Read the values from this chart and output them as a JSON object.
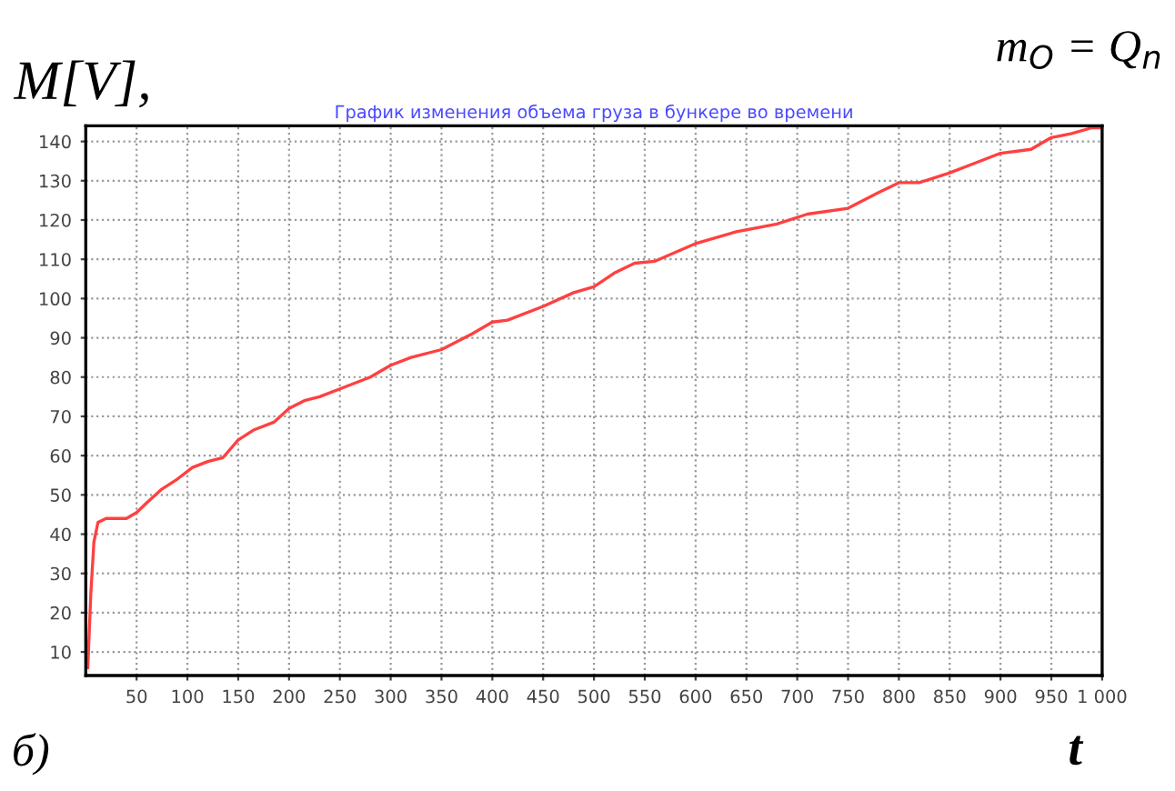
{
  "chart_data": {
    "type": "line",
    "title": "График изменения объема груза в бункере во времени",
    "xlabel": "t",
    "ylabel": "M[V],",
    "annotations": [
      "m$_{O}$ = Q$_{n}$",
      "б)"
    ],
    "x": [
      2,
      5,
      8,
      12,
      20,
      40,
      50,
      60,
      75,
      90,
      105,
      120,
      135,
      150,
      165,
      185,
      200,
      215,
      230,
      250,
      280,
      300,
      320,
      350,
      380,
      400,
      415,
      450,
      480,
      500,
      520,
      540,
      560,
      600,
      640,
      680,
      710,
      750,
      780,
      800,
      820,
      850,
      870,
      900,
      930,
      950,
      970,
      990,
      1000
    ],
    "series": [
      {
        "color": "#ff4040",
        "values": [
          6,
          25,
          38,
          43,
          44,
          44,
          45.5,
          48,
          51.5,
          54,
          57,
          58.5,
          59.5,
          64,
          66.5,
          68.5,
          72,
          74,
          75,
          77,
          80,
          83,
          85,
          87,
          91,
          94,
          94.5,
          98,
          101.5,
          103,
          106.5,
          109,
          109.5,
          114,
          117,
          119,
          121.5,
          123,
          127,
          129.5,
          129.5,
          132,
          134,
          137,
          138,
          141,
          142,
          143.5,
          143.5
        ]
      }
    ],
    "xlim": [
      0,
      1000
    ],
    "ylim": [
      4,
      144
    ],
    "xticks": [
      50,
      100,
      150,
      200,
      250,
      300,
      350,
      400,
      450,
      500,
      550,
      600,
      650,
      700,
      750,
      800,
      850,
      900,
      950,
      {
        "value": 1000,
        "label": "1 000"
      }
    ],
    "yticks": [
      10,
      20,
      30,
      40,
      50,
      60,
      70,
      80,
      90,
      100,
      110,
      120,
      130,
      140
    ],
    "grid": true,
    "line_style": "solid",
    "marker": "none"
  }
}
